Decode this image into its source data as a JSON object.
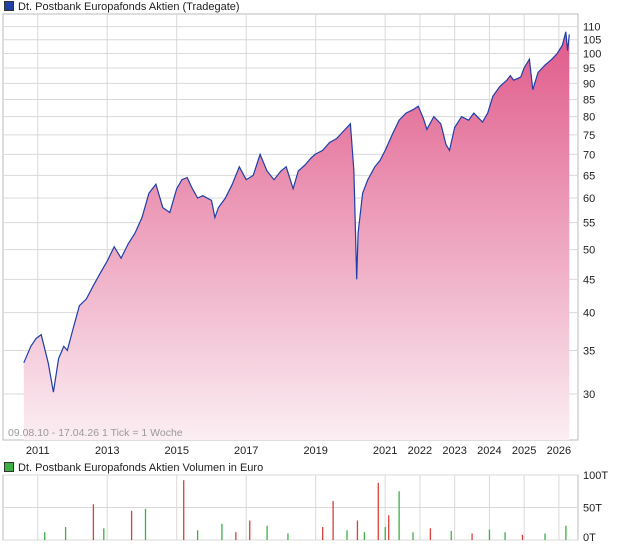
{
  "colors": {
    "price_line": "#1f3fa8",
    "area_top": "#e05a8a",
    "area_bottom": "#fbeef3",
    "volume_up": "#3cb043",
    "volume_down": "#d9403a",
    "grid": "#d9d9d9",
    "legend_price": "#1f3fa8",
    "legend_volume": "#3cb043"
  },
  "chart_data": [
    {
      "type": "area",
      "title": "Dt. Postbank Europafonds Aktien (Tradegate)",
      "scale": "log",
      "ylim": [
        25.5,
        115
      ],
      "y_ticks": [
        "30",
        "35",
        "40",
        "45",
        "50",
        "55",
        "60",
        "65",
        "70",
        "75",
        "80",
        "85",
        "90",
        "95",
        "100",
        "105",
        "110"
      ],
      "x_ticks": [
        "2011",
        "2013",
        "2015",
        "2017",
        "2019",
        "2021",
        "2022",
        "2023",
        "2024",
        "2025",
        "2026"
      ],
      "date_range_label": "09.08.10 - 17.04.26",
      "tick_label": "1 Tick = 1 Woche",
      "grid": true,
      "x": [
        2010.6,
        2010.8,
        2010.95,
        2011.1,
        2011.3,
        2011.45,
        2011.6,
        2011.75,
        2011.85,
        2012.0,
        2012.2,
        2012.4,
        2012.6,
        2012.8,
        2013.0,
        2013.2,
        2013.4,
        2013.6,
        2013.8,
        2014.0,
        2014.2,
        2014.4,
        2014.6,
        2014.8,
        2015.0,
        2015.15,
        2015.3,
        2015.45,
        2015.6,
        2015.75,
        2016.0,
        2016.1,
        2016.2,
        2016.4,
        2016.6,
        2016.8,
        2017.0,
        2017.2,
        2017.4,
        2017.6,
        2017.8,
        2018.0,
        2018.15,
        2018.35,
        2018.5,
        2018.7,
        2018.85,
        2018.98,
        2019.2,
        2019.4,
        2019.6,
        2019.8,
        2020.0,
        2020.1,
        2020.18,
        2020.22,
        2020.35,
        2020.5,
        2020.7,
        2020.85,
        2021.0,
        2021.2,
        2021.4,
        2021.6,
        2021.8,
        2021.95,
        2022.1,
        2022.2,
        2022.4,
        2022.6,
        2022.75,
        2022.85,
        2023.0,
        2023.2,
        2023.4,
        2023.55,
        2023.7,
        2023.8,
        2023.95,
        2024.1,
        2024.3,
        2024.5,
        2024.6,
        2024.7,
        2024.9,
        2025.0,
        2025.15,
        2025.25,
        2025.4,
        2025.6,
        2025.8,
        2025.95,
        2026.1,
        2026.2,
        2026.25,
        2026.3
      ],
      "series": [
        {
          "values": [
            33.5,
            35.5,
            36.5,
            37.0,
            33.5,
            30.2,
            34.0,
            35.5,
            35.0,
            37.5,
            41.0,
            42.0,
            44.0,
            46.0,
            48.0,
            50.5,
            48.5,
            51.0,
            53.0,
            56.0,
            61.0,
            63.0,
            58.0,
            57.0,
            62.0,
            64.0,
            64.5,
            62.0,
            60.0,
            60.5,
            59.5,
            56.0,
            58.0,
            60.0,
            63.0,
            67.0,
            64.0,
            65.0,
            70.0,
            66.0,
            64.0,
            66.0,
            67.0,
            62.0,
            66.0,
            67.5,
            69.0,
            70.0,
            71.0,
            73.0,
            74.0,
            76.0,
            78.0,
            66.0,
            45.0,
            53.0,
            61.0,
            64.0,
            67.0,
            68.5,
            71.0,
            75.0,
            79.0,
            81.0,
            82.0,
            83.0,
            79.5,
            76.5,
            80.0,
            78.0,
            72.5,
            71.0,
            77.0,
            80.0,
            79.0,
            81.0,
            79.5,
            78.5,
            81.0,
            86.0,
            89.0,
            91.0,
            92.5,
            91.0,
            92.0,
            95.0,
            98.0,
            88.0,
            93.5,
            96.0,
            98.0,
            100.0,
            103.0,
            108.0,
            101.0,
            107.0
          ]
        }
      ]
    },
    {
      "type": "bar",
      "title": "Dt. Postbank Europafonds Aktien Volumen in Euro",
      "ylim": [
        0,
        100
      ],
      "y_ticks": [
        "0T",
        "50T",
        "100T"
      ],
      "ylabel": "Volumen in Euro",
      "bars": [
        {
          "x": 2011.2,
          "value": 12,
          "dir": "up"
        },
        {
          "x": 2011.8,
          "value": 20,
          "dir": "up"
        },
        {
          "x": 2012.6,
          "value": 55,
          "dir": "down"
        },
        {
          "x": 2012.9,
          "value": 18,
          "dir": "up"
        },
        {
          "x": 2013.7,
          "value": 45,
          "dir": "down"
        },
        {
          "x": 2014.1,
          "value": 48,
          "dir": "up"
        },
        {
          "x": 2015.2,
          "value": 92,
          "dir": "down"
        },
        {
          "x": 2015.6,
          "value": 15,
          "dir": "up"
        },
        {
          "x": 2016.3,
          "value": 25,
          "dir": "up"
        },
        {
          "x": 2016.7,
          "value": 12,
          "dir": "down"
        },
        {
          "x": 2017.1,
          "value": 30,
          "dir": "down"
        },
        {
          "x": 2017.6,
          "value": 22,
          "dir": "up"
        },
        {
          "x": 2018.2,
          "value": 10,
          "dir": "up"
        },
        {
          "x": 2019.2,
          "value": 20,
          "dir": "down"
        },
        {
          "x": 2019.5,
          "value": 60,
          "dir": "down"
        },
        {
          "x": 2019.9,
          "value": 15,
          "dir": "up"
        },
        {
          "x": 2020.2,
          "value": 30,
          "dir": "down"
        },
        {
          "x": 2020.4,
          "value": 12,
          "dir": "up"
        },
        {
          "x": 2020.8,
          "value": 88,
          "dir": "down"
        },
        {
          "x": 2021.0,
          "value": 20,
          "dir": "up"
        },
        {
          "x": 2021.1,
          "value": 38,
          "dir": "down"
        },
        {
          "x": 2021.4,
          "value": 75,
          "dir": "up"
        },
        {
          "x": 2021.8,
          "value": 12,
          "dir": "up"
        },
        {
          "x": 2022.3,
          "value": 18,
          "dir": "down"
        },
        {
          "x": 2022.9,
          "value": 14,
          "dir": "up"
        },
        {
          "x": 2023.5,
          "value": 10,
          "dir": "down"
        },
        {
          "x": 2024.0,
          "value": 16,
          "dir": "up"
        },
        {
          "x": 2024.45,
          "value": 12,
          "dir": "up"
        },
        {
          "x": 2024.95,
          "value": 8,
          "dir": "down"
        },
        {
          "x": 2025.6,
          "value": 10,
          "dir": "up"
        },
        {
          "x": 2026.2,
          "value": 22,
          "dir": "up"
        }
      ]
    }
  ]
}
